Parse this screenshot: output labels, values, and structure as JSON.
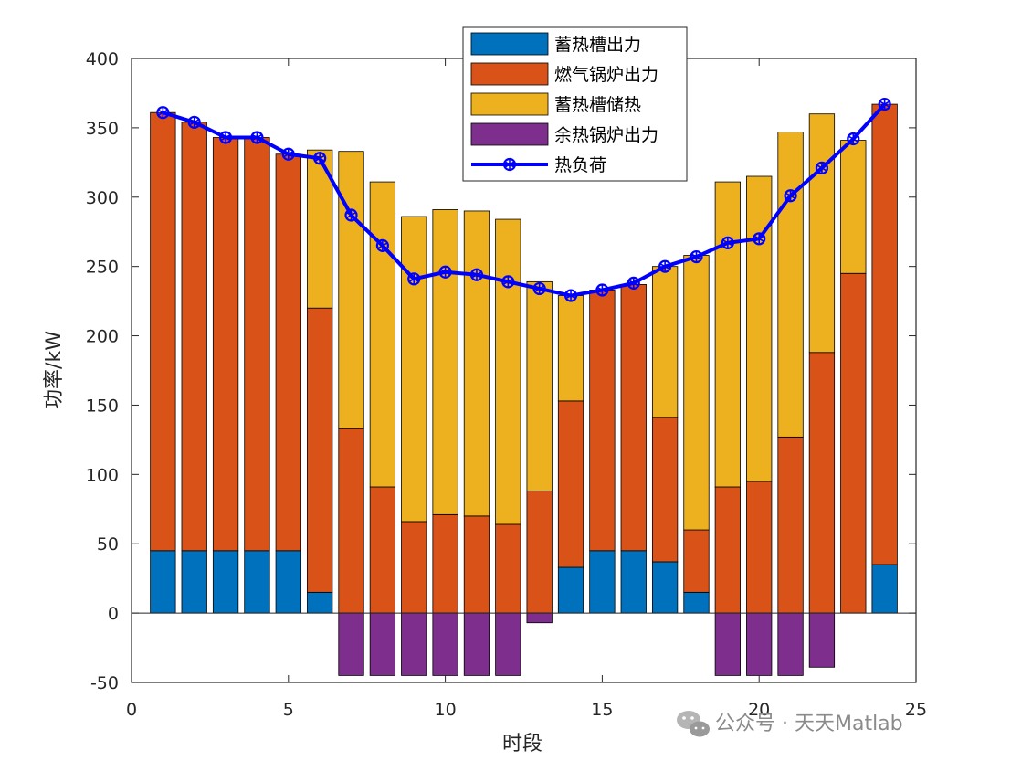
{
  "chart_data": {
    "type": "bar",
    "stacked": true,
    "title": "",
    "xlabel": "时段",
    "ylabel": "功率/kW",
    "xlim": [
      0,
      25
    ],
    "ylim": [
      -50,
      400
    ],
    "xticks": [
      0,
      5,
      10,
      15,
      20,
      25
    ],
    "yticks": [
      -50,
      0,
      50,
      100,
      150,
      200,
      250,
      300,
      350,
      400
    ],
    "x": [
      1,
      2,
      3,
      4,
      5,
      6,
      7,
      8,
      9,
      10,
      11,
      12,
      13,
      14,
      15,
      16,
      17,
      18,
      19,
      20,
      21,
      22,
      23,
      24
    ],
    "series": [
      {
        "name": "蓄热槽出力",
        "color": "#0072BD",
        "values": [
          45,
          45,
          45,
          45,
          45,
          15,
          0,
          0,
          0,
          0,
          0,
          0,
          0,
          33,
          45,
          45,
          37,
          15,
          0,
          0,
          0,
          0,
          0,
          35
        ]
      },
      {
        "name": "燃气锅炉出力",
        "color": "#D95319",
        "values": [
          316,
          309,
          298,
          298,
          286,
          205,
          133,
          91,
          66,
          71,
          70,
          64,
          88,
          120,
          188,
          192,
          104,
          45,
          91,
          95,
          127,
          188,
          245,
          332
        ]
      },
      {
        "name": "蓄热槽储热",
        "color": "#EDB120",
        "values": [
          0,
          0,
          0,
          0,
          0,
          114,
          200,
          220,
          220,
          220,
          220,
          220,
          151,
          76,
          0,
          0,
          109,
          198,
          220,
          220,
          220,
          172,
          96,
          0
        ]
      },
      {
        "name": "余热锅炉出力",
        "color": "#7E2F8E",
        "values": [
          0,
          0,
          0,
          0,
          0,
          0,
          -45,
          -45,
          -45,
          -45,
          -45,
          -45,
          -7,
          0,
          0,
          0,
          0,
          0,
          -45,
          -45,
          -45,
          -39,
          0,
          0
        ]
      }
    ],
    "line": {
      "name": "热负荷",
      "color": "#0000FF",
      "values": [
        361,
        354,
        343,
        343,
        331,
        328,
        287,
        265,
        241,
        246,
        244,
        239,
        234,
        229,
        233,
        238,
        250,
        257,
        267,
        270,
        301,
        321,
        342,
        367
      ]
    },
    "legend_location": "top-center"
  },
  "watermark": "公众号 · 天天Matlab"
}
